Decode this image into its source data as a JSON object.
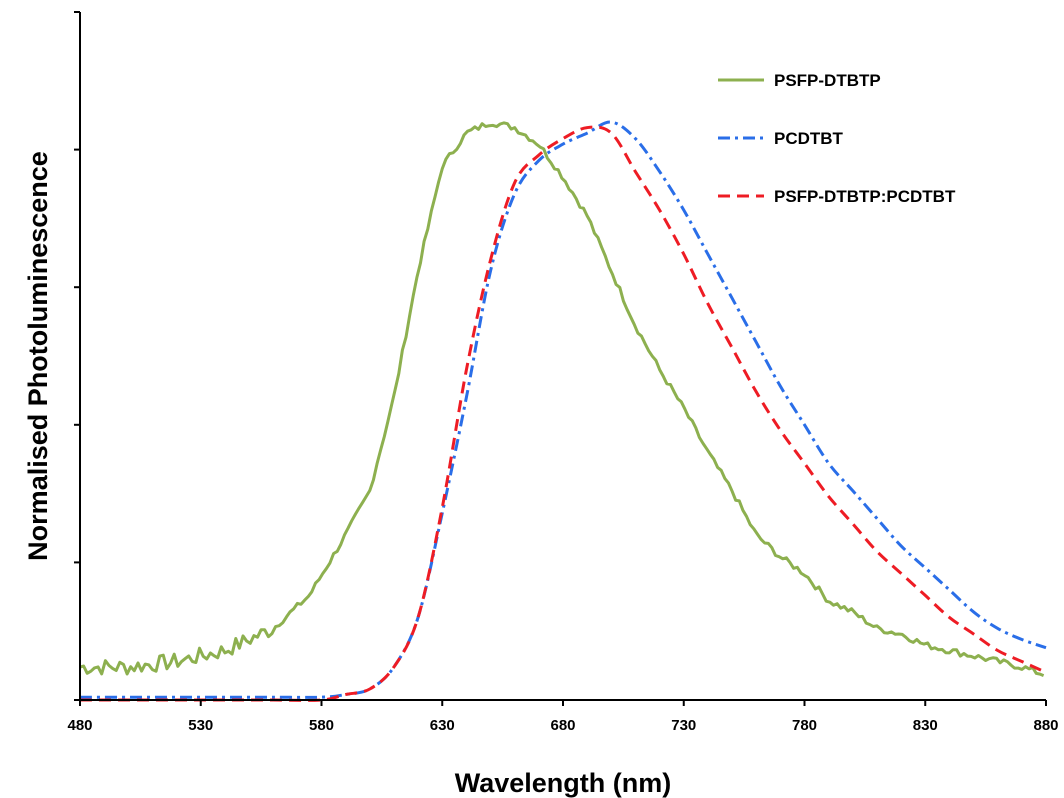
{
  "chart_data": {
    "type": "line",
    "title": "",
    "xlabel": "Wavelength (nm)",
    "ylabel": "Normalised Photoluminescence",
    "xlim": [
      480,
      880
    ],
    "ylim": [
      0,
      1.25
    ],
    "x_ticks": [
      480,
      530,
      580,
      630,
      680,
      730,
      780,
      830,
      880
    ],
    "y_ticks": [
      0,
      0.25,
      0.5,
      0.75,
      1.0,
      1.25
    ],
    "y_tick_labels_shown": false,
    "grid": false,
    "legend_position": "top-right",
    "series": [
      {
        "name": "PSFP-DTBTP",
        "color": "#8db04f",
        "style": "solid",
        "noisy": true,
        "points": [
          [
            480,
            0.06
          ],
          [
            500,
            0.06
          ],
          [
            520,
            0.07
          ],
          [
            540,
            0.09
          ],
          [
            560,
            0.13
          ],
          [
            575,
            0.19
          ],
          [
            590,
            0.3
          ],
          [
            600,
            0.38
          ],
          [
            610,
            0.55
          ],
          [
            620,
            0.78
          ],
          [
            630,
            0.97
          ],
          [
            640,
            1.03
          ],
          [
            650,
            1.05
          ],
          [
            660,
            1.04
          ],
          [
            670,
            1.01
          ],
          [
            680,
            0.95
          ],
          [
            690,
            0.88
          ],
          [
            700,
            0.78
          ],
          [
            710,
            0.68
          ],
          [
            720,
            0.6
          ],
          [
            730,
            0.53
          ],
          [
            740,
            0.45
          ],
          [
            750,
            0.38
          ],
          [
            760,
            0.3
          ],
          [
            770,
            0.26
          ],
          [
            780,
            0.23
          ],
          [
            790,
            0.18
          ],
          [
            800,
            0.16
          ],
          [
            810,
            0.13
          ],
          [
            820,
            0.12
          ],
          [
            830,
            0.1
          ],
          [
            840,
            0.09
          ],
          [
            850,
            0.08
          ],
          [
            860,
            0.07
          ],
          [
            870,
            0.06
          ],
          [
            880,
            0.045
          ]
        ]
      },
      {
        "name": "PCDTBT",
        "color": "#2a6ee8",
        "style": "dash-dot",
        "noisy": false,
        "points": [
          [
            480,
            0.005
          ],
          [
            500,
            0.005
          ],
          [
            520,
            0.005
          ],
          [
            540,
            0.005
          ],
          [
            560,
            0.005
          ],
          [
            580,
            0.005
          ],
          [
            590,
            0.01
          ],
          [
            600,
            0.02
          ],
          [
            610,
            0.06
          ],
          [
            620,
            0.15
          ],
          [
            630,
            0.34
          ],
          [
            640,
            0.55
          ],
          [
            650,
            0.78
          ],
          [
            660,
            0.92
          ],
          [
            670,
            0.98
          ],
          [
            680,
            1.01
          ],
          [
            690,
            1.03
          ],
          [
            700,
            1.05
          ],
          [
            710,
            1.02
          ],
          [
            720,
            0.96
          ],
          [
            730,
            0.89
          ],
          [
            740,
            0.81
          ],
          [
            750,
            0.73
          ],
          [
            760,
            0.65
          ],
          [
            770,
            0.57
          ],
          [
            780,
            0.5
          ],
          [
            790,
            0.43
          ],
          [
            800,
            0.38
          ],
          [
            810,
            0.33
          ],
          [
            820,
            0.28
          ],
          [
            830,
            0.24
          ],
          [
            840,
            0.2
          ],
          [
            850,
            0.16
          ],
          [
            860,
            0.13
          ],
          [
            870,
            0.11
          ],
          [
            880,
            0.095
          ]
        ]
      },
      {
        "name": "PSFP-DTBTP:PCDTBT",
        "color": "#ee1c24",
        "style": "dashed",
        "noisy": false,
        "points": [
          [
            480,
            0.0
          ],
          [
            500,
            0.0
          ],
          [
            520,
            0.0
          ],
          [
            540,
            0.0
          ],
          [
            560,
            0.0
          ],
          [
            580,
            0.0
          ],
          [
            590,
            0.01
          ],
          [
            600,
            0.02
          ],
          [
            610,
            0.06
          ],
          [
            620,
            0.15
          ],
          [
            630,
            0.35
          ],
          [
            640,
            0.6
          ],
          [
            650,
            0.8
          ],
          [
            660,
            0.94
          ],
          [
            670,
            0.99
          ],
          [
            680,
            1.02
          ],
          [
            690,
            1.04
          ],
          [
            700,
            1.03
          ],
          [
            710,
            0.96
          ],
          [
            720,
            0.89
          ],
          [
            730,
            0.81
          ],
          [
            740,
            0.72
          ],
          [
            750,
            0.64
          ],
          [
            760,
            0.56
          ],
          [
            770,
            0.49
          ],
          [
            780,
            0.43
          ],
          [
            790,
            0.37
          ],
          [
            800,
            0.32
          ],
          [
            810,
            0.27
          ],
          [
            820,
            0.23
          ],
          [
            830,
            0.19
          ],
          [
            840,
            0.15
          ],
          [
            850,
            0.12
          ],
          [
            860,
            0.09
          ],
          [
            870,
            0.07
          ],
          [
            880,
            0.05
          ]
        ]
      }
    ]
  }
}
